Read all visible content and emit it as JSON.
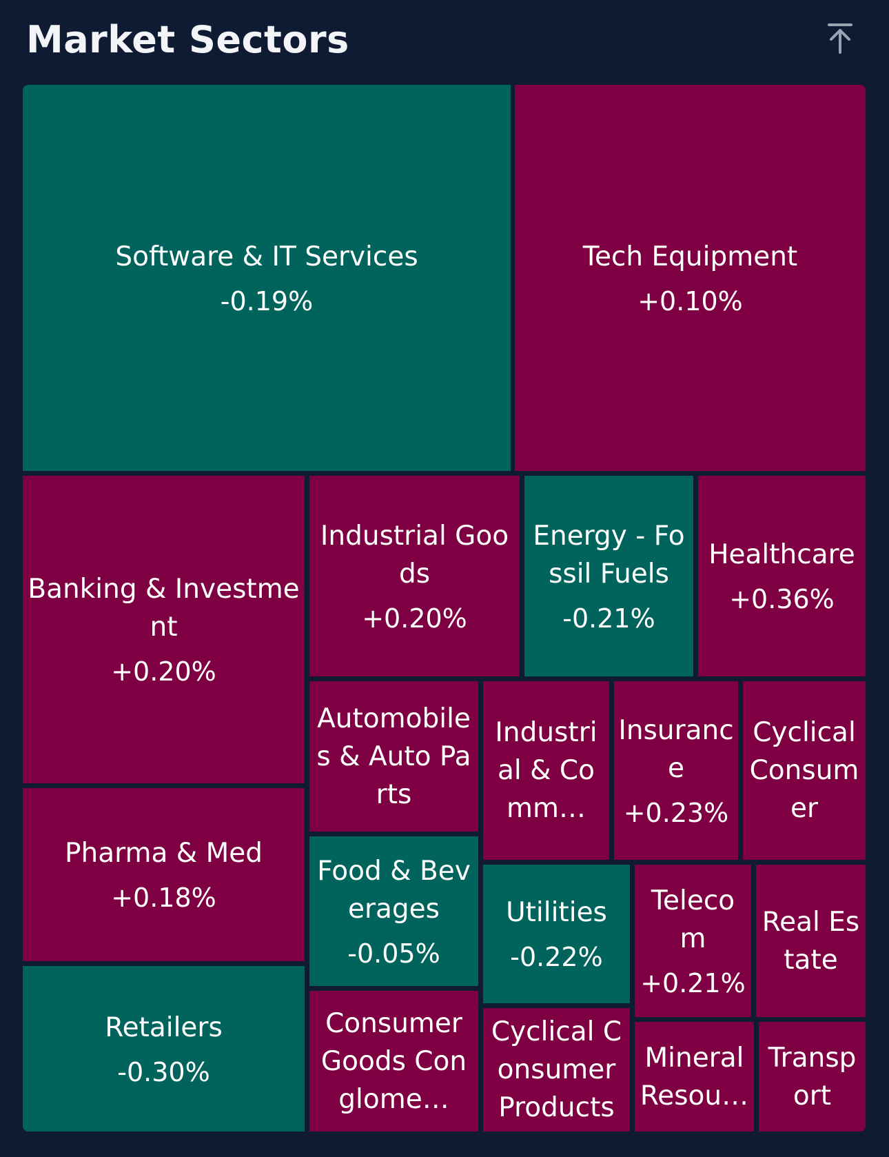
{
  "header": {
    "title": "Market Sectors",
    "collapse_icon": "collapse-up-icon"
  },
  "colors": {
    "background": "#0f1a33",
    "positive": "#7f0042",
    "negative": "#00645d"
  },
  "chart_data": {
    "type": "treemap",
    "title": "Market Sectors",
    "sectors": [
      {
        "name": "Software & IT Services",
        "label": "Software & IT Services",
        "change": "-0.19%",
        "value": -0.19
      },
      {
        "name": "Tech Equipment",
        "label": "Tech Equipment",
        "change": "+0.10%",
        "value": 0.1
      },
      {
        "name": "Banking & Investment",
        "label": "Banking & Investment",
        "change": "+0.20%",
        "value": 0.2
      },
      {
        "name": "Industrial Goods",
        "label": "Industrial Goods",
        "change": "+0.20%",
        "value": 0.2
      },
      {
        "name": "Energy - Fossil Fuels",
        "label": "Energy - Fossil Fuels",
        "change": "-0.21%",
        "value": -0.21
      },
      {
        "name": "Healthcare",
        "label": "Healthcare",
        "change": "+0.36%",
        "value": 0.36
      },
      {
        "name": "Automobiles & Auto Parts",
        "label": "Automobiles & Auto Parts",
        "change": "",
        "value": null
      },
      {
        "name": "Industrial & Commercial",
        "label": "Industrial & Comm…",
        "change": "",
        "value": null
      },
      {
        "name": "Insurance",
        "label": "Insurance",
        "change": "+0.23%",
        "value": 0.23
      },
      {
        "name": "Cyclical Consumer",
        "label": "Cyclical Consumer",
        "change": "",
        "value": null
      },
      {
        "name": "Pharma & Med",
        "label": "Pharma & Med",
        "change": "+0.18%",
        "value": 0.18
      },
      {
        "name": "Food & Beverages",
        "label": "Food & Beverages",
        "change": "-0.05%",
        "value": -0.05
      },
      {
        "name": "Utilities",
        "label": "Utilities",
        "change": "-0.22%",
        "value": -0.22
      },
      {
        "name": "Telecom",
        "label": "Telecom",
        "change": "+0.21%",
        "value": 0.21
      },
      {
        "name": "Real Estate",
        "label": "Real Estate",
        "change": "",
        "value": null
      },
      {
        "name": "Retailers",
        "label": "Retailers",
        "change": "-0.30%",
        "value": -0.3
      },
      {
        "name": "Consumer Goods Conglomerates",
        "label": "Consumer Goods Conglome…",
        "change": "",
        "value": null
      },
      {
        "name": "Cyclical Consumer Products",
        "label": "Cyclical Consumer Products",
        "change": "",
        "value": null
      },
      {
        "name": "Mineral Resources",
        "label": "Mineral Resou…",
        "change": "",
        "value": null
      },
      {
        "name": "Transport",
        "label": "Transport",
        "change": "",
        "value": null
      }
    ]
  }
}
